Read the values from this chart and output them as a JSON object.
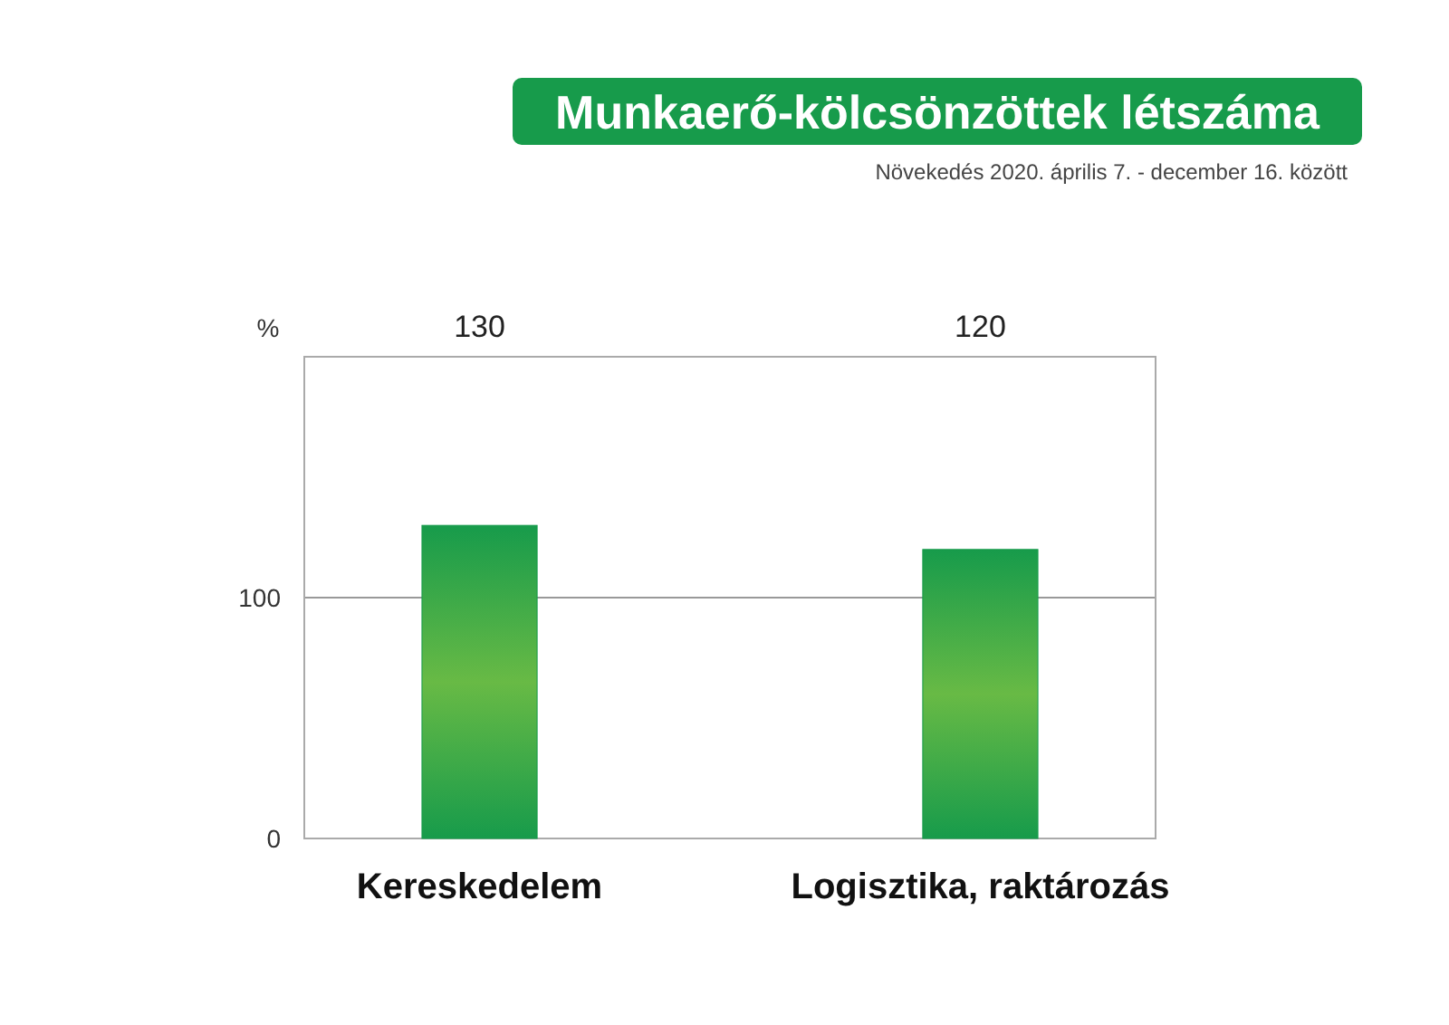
{
  "chart_data": {
    "type": "bar",
    "title": "Munkaerő-kölcsönzöttek létszáma",
    "subtitle": "Növekedés 2020. április 7. - december 16. között",
    "ylabel": "%",
    "categories": [
      "Kereskedelem",
      "Logisztika, raktározás"
    ],
    "values": [
      130,
      120
    ],
    "color": "#179b4b",
    "ylim": [
      0,
      200
    ],
    "yticks": [
      0,
      100
    ],
    "grid": "y",
    "annotations": [
      "130",
      "120"
    ]
  }
}
